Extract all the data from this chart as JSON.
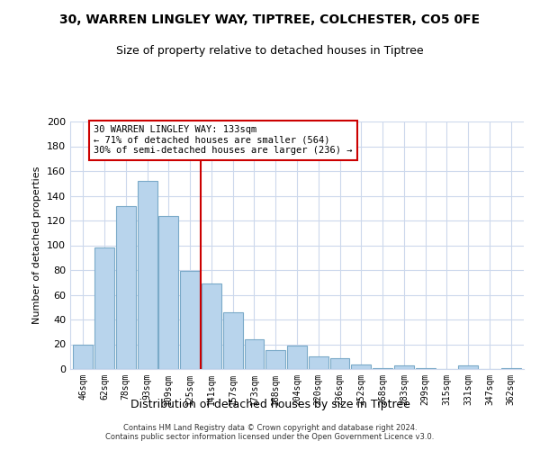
{
  "title": "30, WARREN LINGLEY WAY, TIPTREE, COLCHESTER, CO5 0FE",
  "subtitle": "Size of property relative to detached houses in Tiptree",
  "xlabel": "Distribution of detached houses by size in Tiptree",
  "ylabel": "Number of detached properties",
  "bar_labels": [
    "46sqm",
    "62sqm",
    "78sqm",
    "93sqm",
    "109sqm",
    "125sqm",
    "141sqm",
    "157sqm",
    "173sqm",
    "188sqm",
    "204sqm",
    "220sqm",
    "236sqm",
    "252sqm",
    "268sqm",
    "283sqm",
    "299sqm",
    "315sqm",
    "331sqm",
    "347sqm",
    "362sqm"
  ],
  "bar_values": [
    20,
    98,
    132,
    152,
    124,
    79,
    69,
    46,
    24,
    15,
    19,
    10,
    9,
    4,
    1,
    3,
    1,
    0,
    3,
    0,
    1
  ],
  "bar_color": "#b8d4ec",
  "bar_edge_color": "#7aaac8",
  "vline_x": 6.0,
  "vline_color": "#cc0000",
  "annotation_text": "30 WARREN LINGLEY WAY: 133sqm\n← 71% of detached houses are smaller (564)\n30% of semi-detached houses are larger (236) →",
  "annotation_box_color": "#ffffff",
  "annotation_box_edge": "#cc0000",
  "ylim": [
    0,
    200
  ],
  "yticks": [
    0,
    20,
    40,
    60,
    80,
    100,
    120,
    140,
    160,
    180,
    200
  ],
  "footer_line1": "Contains HM Land Registry data © Crown copyright and database right 2024.",
  "footer_line2": "Contains public sector information licensed under the Open Government Licence v3.0.",
  "bg_color": "#ffffff",
  "grid_color": "#ccd8ec"
}
